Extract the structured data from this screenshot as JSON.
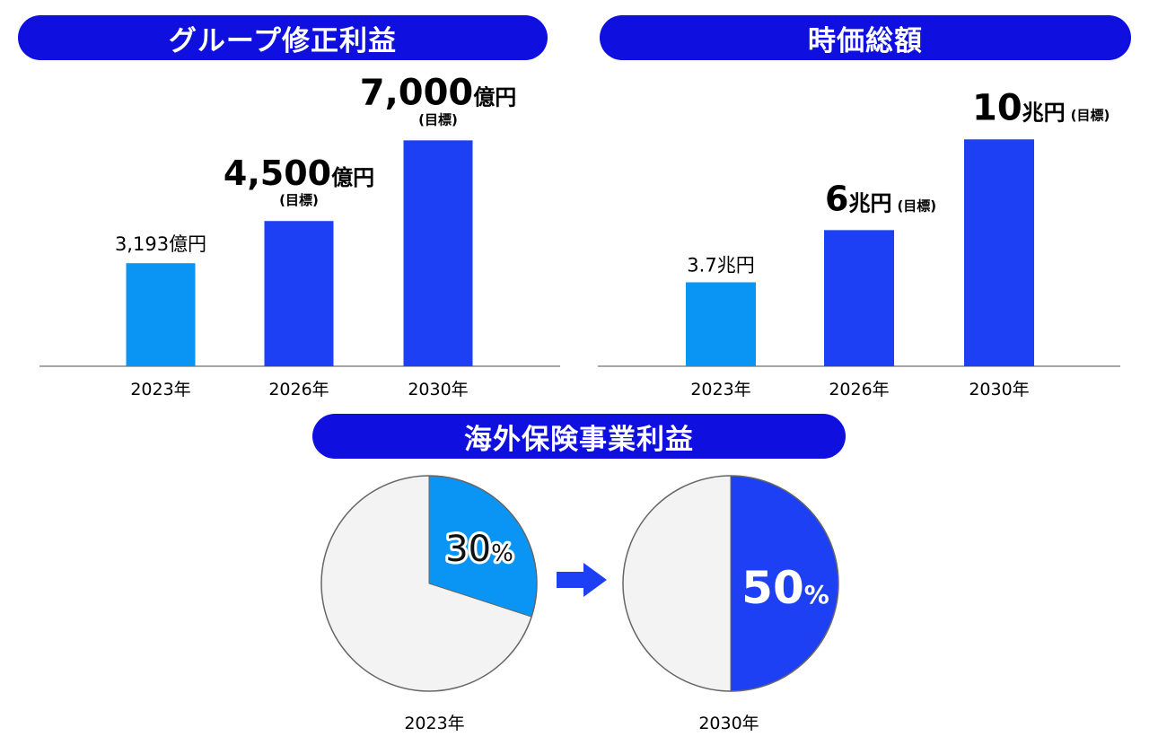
{
  "headers": {
    "profit": "グループ修正利益",
    "market_cap": "時価総額",
    "overseas": "海外保険事業利益"
  },
  "colors": {
    "actual": "#0a95f5",
    "target": "#1e40f5",
    "header": "#0f0fe0",
    "pie_rest": "#f3f3f3"
  },
  "chart_data": [
    {
      "type": "bar",
      "title": "グループ修正利益",
      "categories": [
        "2023年",
        "2026年",
        "2030年"
      ],
      "values": [
        3193,
        4500,
        7000
      ],
      "value_labels": [
        {
          "num": "3,193",
          "unit": "億円",
          "note": ""
        },
        {
          "num": "4,500",
          "unit": "億円",
          "note": "(目標)"
        },
        {
          "num": "7,000",
          "unit": "億円",
          "note": "(目標)"
        }
      ],
      "ylim": [
        0,
        7900
      ]
    },
    {
      "type": "bar",
      "title": "時価総額",
      "categories": [
        "2023年",
        "2026年",
        "2030年"
      ],
      "values": [
        3.7,
        6,
        10
      ],
      "value_labels": [
        {
          "num": "3.7",
          "unit": "兆円",
          "note": ""
        },
        {
          "num": "6",
          "unit": "兆円",
          "note": "(目標)"
        },
        {
          "num": "10",
          "unit": "兆円",
          "note": "(目標)"
        }
      ],
      "ylim": [
        0,
        11
      ]
    },
    {
      "type": "pie",
      "title": "海外保険事業利益",
      "pies": [
        {
          "label": "2023年",
          "value": 30,
          "num": "30",
          "unit": "%"
        },
        {
          "label": "2030年",
          "value": 50,
          "num": "50",
          "unit": "%"
        }
      ]
    }
  ]
}
